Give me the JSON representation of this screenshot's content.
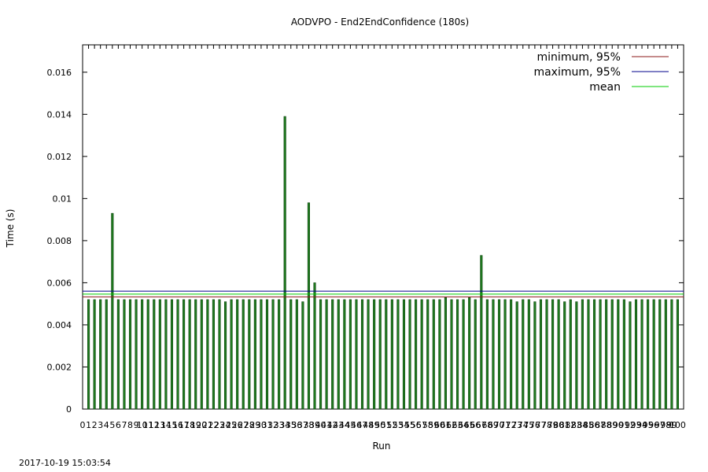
{
  "timestamp": "2017-10-19 15:03:54",
  "chart_data": {
    "type": "bar",
    "title": "AODVPO - End2EndConfidence (180s)",
    "xlabel": "Run",
    "ylabel": "Time (s)",
    "ylim": [
      0,
      0.0173
    ],
    "yticks": [
      "0",
      "0.002",
      "0.004",
      "0.006",
      "0.008",
      "0.01",
      "0.012",
      "0.014",
      "0.016"
    ],
    "xticks": [
      "0",
      "1",
      "2",
      "3",
      "4",
      "5",
      "6",
      "7",
      "8",
      "9",
      "10",
      "11",
      "12",
      "13",
      "14",
      "15",
      "16",
      "17",
      "18",
      "19",
      "20",
      "21",
      "22",
      "23",
      "24",
      "25",
      "26",
      "27",
      "28",
      "29",
      "30",
      "31",
      "32",
      "33",
      "34",
      "35",
      "36",
      "37",
      "38",
      "39",
      "40",
      "41",
      "42",
      "43",
      "44",
      "45",
      "46",
      "47",
      "48",
      "49",
      "50",
      "51",
      "52",
      "53",
      "54",
      "55",
      "56",
      "57",
      "58",
      "59",
      "60",
      "61",
      "62",
      "63",
      "64",
      "65",
      "66",
      "67",
      "68",
      "69",
      "70",
      "71",
      "72",
      "73",
      "74",
      "75",
      "76",
      "77",
      "78",
      "79",
      "80",
      "81",
      "82",
      "83",
      "84",
      "85",
      "86",
      "87",
      "88",
      "89",
      "90",
      "91",
      "92",
      "93",
      "94",
      "95",
      "96",
      "97",
      "98",
      "99",
      "100"
    ],
    "x": [
      1,
      2,
      3,
      4,
      5,
      6,
      7,
      8,
      9,
      10,
      11,
      12,
      13,
      14,
      15,
      16,
      17,
      18,
      19,
      20,
      21,
      22,
      23,
      24,
      25,
      26,
      27,
      28,
      29,
      30,
      31,
      32,
      33,
      34,
      35,
      36,
      37,
      38,
      39,
      40,
      41,
      42,
      43,
      44,
      45,
      46,
      47,
      48,
      49,
      50,
      51,
      52,
      53,
      54,
      55,
      56,
      57,
      58,
      59,
      60,
      61,
      62,
      63,
      64,
      65,
      66,
      67,
      68,
      69,
      70,
      71,
      72,
      73,
      74,
      75,
      76,
      77,
      78,
      79,
      80,
      81,
      82,
      83,
      84,
      85,
      86,
      87,
      88,
      89,
      90,
      91,
      92,
      93,
      94,
      95,
      96,
      97,
      98,
      99,
      100
    ],
    "series": [
      {
        "values": [
          0.0052,
          0.0052,
          0.0052,
          0.0052,
          0.0093,
          0.0052,
          0.0052,
          0.0052,
          0.0052,
          0.0052,
          0.0052,
          0.0052,
          0.0052,
          0.0052,
          0.0052,
          0.0052,
          0.0052,
          0.0052,
          0.0052,
          0.0052,
          0.0052,
          0.0052,
          0.0052,
          0.0051,
          0.0052,
          0.0052,
          0.0052,
          0.0052,
          0.0052,
          0.0052,
          0.0052,
          0.0052,
          0.0052,
          0.0139,
          0.0052,
          0.0052,
          0.0051,
          0.0098,
          0.006,
          0.0052,
          0.0052,
          0.0052,
          0.0052,
          0.0052,
          0.0052,
          0.0052,
          0.0052,
          0.0052,
          0.0052,
          0.0052,
          0.0052,
          0.0052,
          0.0052,
          0.0052,
          0.0052,
          0.0052,
          0.0052,
          0.0052,
          0.0052,
          0.0052,
          0.0053,
          0.0052,
          0.0052,
          0.0052,
          0.0053,
          0.0052,
          0.0073,
          0.0052,
          0.0052,
          0.0052,
          0.0052,
          0.0052,
          0.0051,
          0.0052,
          0.0052,
          0.0051,
          0.0052,
          0.0052,
          0.0052,
          0.0052,
          0.0051,
          0.0052,
          0.0051,
          0.0052,
          0.0052,
          0.0052,
          0.0052,
          0.0052,
          0.0052,
          0.0052,
          0.0052,
          0.0051,
          0.0052,
          0.0052,
          0.0052,
          0.0052,
          0.0052,
          0.0052,
          0.0052,
          0.0052
        ],
        "color": "#1f7a1f"
      }
    ],
    "reference_lines": [
      {
        "name": "minimum, 95%",
        "value": 0.00533,
        "color": "#8b1a1a"
      },
      {
        "name": "maximum, 95%",
        "value": 0.0056,
        "color": "#00008b"
      },
      {
        "name": "mean",
        "value": 0.00546,
        "color": "#00cc00"
      }
    ],
    "legend_position": "top-right",
    "grid": false
  }
}
